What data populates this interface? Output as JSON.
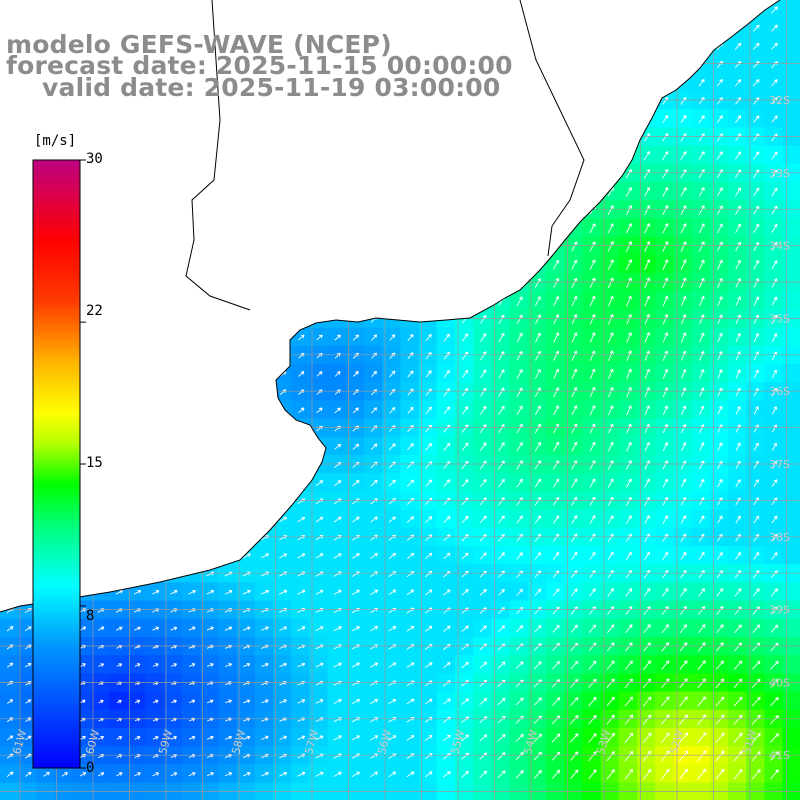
{
  "title": {
    "line1": "modelo GEFS-WAVE (NCEP)",
    "line2": "forecast date: 2025-11-15 00:00:00",
    "line3": "valid date: 2025-11-19 03:00:00"
  },
  "colorbar": {
    "unit": "[m/s]",
    "ticks": [
      "30",
      "22",
      "15",
      "8",
      "0"
    ],
    "tick_values": [
      30,
      22,
      15,
      8,
      0
    ],
    "min": 0,
    "max": 30,
    "colors": [
      "#0000ff",
      "#00aaff",
      "#00ffff",
      "#00ff00",
      "#ffff00",
      "#ff9900",
      "#ff0000",
      "#c0007f"
    ]
  },
  "map": {
    "lat_labels": [
      "32S",
      "33S",
      "34S",
      "35S",
      "36S",
      "37S",
      "38S",
      "39S",
      "40S",
      "41S"
    ],
    "lon_labels": [
      "61W",
      "60W",
      "59W",
      "58W",
      "57W",
      "56W",
      "55W",
      "54W",
      "53W",
      "52W",
      "51W"
    ],
    "wind_direction": "towards northeast",
    "colors": {
      "land": "#ffffff",
      "grid": "#999999",
      "coastline": "#000000",
      "arrows": "#ffffff",
      "title_text": "#8c8c8c"
    }
  }
}
